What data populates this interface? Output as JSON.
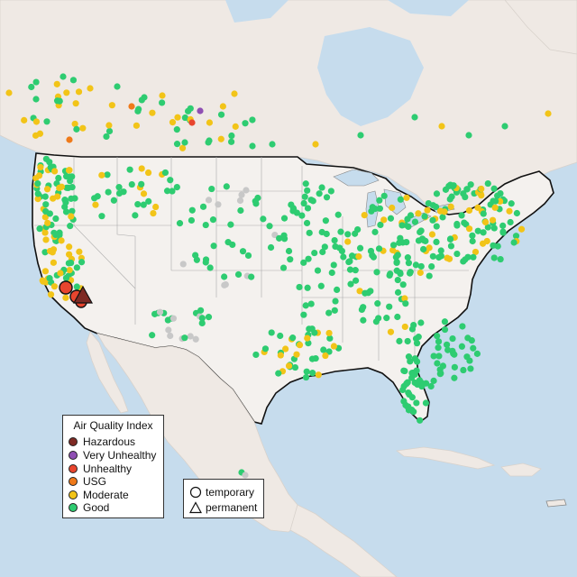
{
  "legend": {
    "title": "Air Quality Index",
    "categories": [
      {
        "label": "Hazardous",
        "color": "#7e2a24"
      },
      {
        "label": "Very Unhealthy",
        "color": "#8f4fb3"
      },
      {
        "label": "Unhealthy",
        "color": "#e8452e"
      },
      {
        "label": "USG",
        "color": "#ef7a1a"
      },
      {
        "label": "Moderate",
        "color": "#f2c418"
      },
      {
        "label": "Good",
        "color": "#2ecc71"
      }
    ]
  },
  "shape_legend": {
    "temporary": "temporary",
    "permanent": "permanent"
  },
  "colors": {
    "water": "#c6dced",
    "land": "#efe9e4",
    "usa": "#f4f1ee",
    "no_data": "#c8c8c8"
  }
}
